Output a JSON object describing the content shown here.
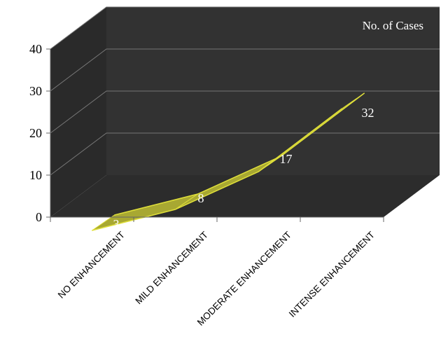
{
  "chart_data": {
    "type": "area",
    "style": "3d",
    "categories": [
      "NO ENHANCEMENT",
      "MILD ENHANCEMENT",
      "MODERATE ENHANCEMENT",
      "INTENSE ENHANCEMENT"
    ],
    "series": [
      {
        "name": "No. of Cases",
        "values": [
          3,
          8,
          17,
          32
        ]
      }
    ],
    "data_labels": [
      "3",
      "8",
      "17",
      "32"
    ],
    "y_ticks": [
      0,
      10,
      20,
      30,
      40
    ],
    "ylim": [
      0,
      40
    ],
    "grid": true,
    "legend_position": "top-right",
    "colors": {
      "back_wall": "#323232",
      "side_wall": "#2a2a2a",
      "floor": "#2c2c2c",
      "gridline": "#777777",
      "series_fill": "#a8a832",
      "series_edge": "#dede3a",
      "label_text": "#ffffff",
      "axis_text": "#000000"
    }
  }
}
